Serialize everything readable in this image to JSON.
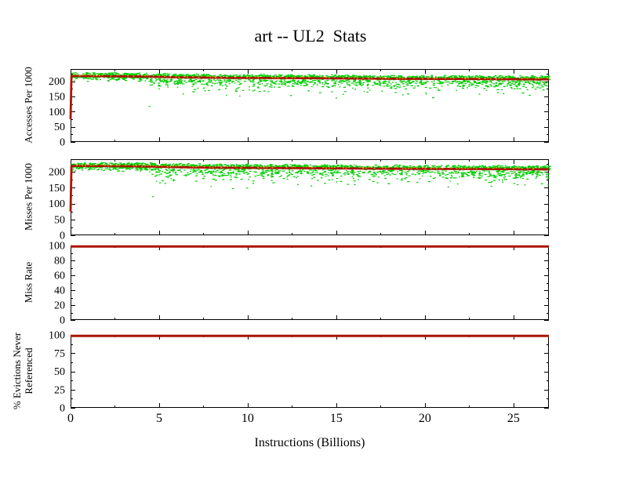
{
  "title": "art -- UL2  Stats",
  "x_axis": {
    "label": "Instructions (Billions)",
    "min": 0,
    "max": 27,
    "major_ticks": [
      0,
      5,
      10,
      15,
      20,
      25
    ],
    "minor_ticks": [
      2.5,
      7.5,
      12.5,
      17.5,
      22.5
    ]
  },
  "colors": {
    "background": "#ffffff",
    "axis": "#000000",
    "scatter_green": "#00cc00",
    "line_red": "#aa1400",
    "marker_yellow": "#c9b800"
  },
  "chart_data": [
    {
      "id": "accesses",
      "type": "scatter",
      "ylabel": "Accesses Per 1000",
      "ylim": [
        0,
        240
      ],
      "yticks": [
        0,
        50,
        100,
        150,
        200
      ],
      "y_minor_step": 25,
      "series": [
        {
          "name": "per-interval-accesses",
          "type": "scatter",
          "color": "#00cc00",
          "seed": 11,
          "count": 2300,
          "band_above_max": 234,
          "spread_start_x": 4.4,
          "spread_depth": 58,
          "stray_points": [
            [
              4.4,
              119
            ]
          ]
        },
        {
          "name": "cumulative-accesses",
          "type": "line",
          "color": "#aa1400",
          "width": 2.8,
          "points": [
            [
              0,
              75
            ],
            [
              0.05,
              217
            ],
            [
              3,
              216
            ],
            [
              4.5,
              215
            ],
            [
              6,
              213
            ],
            [
              9,
              211
            ],
            [
              13,
              210
            ],
            [
              18,
              208
            ],
            [
              23,
              207
            ],
            [
              27,
              206
            ]
          ]
        },
        {
          "name": "secondary-marker",
          "type": "dash-line",
          "color": "#c9b800",
          "seed": 5,
          "step": 0.16,
          "offset_min": 2,
          "offset_max": 6
        }
      ]
    },
    {
      "id": "misses",
      "type": "scatter",
      "ylabel": "Misses Per 1000",
      "ylim": [
        0,
        240
      ],
      "yticks": [
        0,
        50,
        100,
        150,
        200
      ],
      "y_minor_step": 25,
      "series": [
        {
          "name": "per-interval-misses",
          "type": "scatter",
          "color": "#00cc00",
          "seed": 23,
          "count": 2300,
          "band_above_max": 234,
          "spread_start_x": 4.4,
          "spread_depth": 58,
          "stray_points": [
            [
              4.6,
              124
            ]
          ]
        },
        {
          "name": "cumulative-misses",
          "type": "line",
          "color": "#aa1400",
          "width": 2.8,
          "points": [
            [
              0,
              75
            ],
            [
              0.05,
              219
            ],
            [
              3,
              218
            ],
            [
              4.5,
              217
            ],
            [
              6,
              215
            ],
            [
              9,
              213
            ],
            [
              13,
              212
            ],
            [
              18,
              210
            ],
            [
              23,
              209
            ],
            [
              27,
              208
            ]
          ]
        },
        {
          "name": "secondary-marker",
          "type": "dash-line",
          "color": "#c9b800",
          "seed": 9,
          "step": 0.16,
          "offset_min": 2,
          "offset_max": 6
        }
      ]
    },
    {
      "id": "miss-rate",
      "type": "line",
      "ylabel": "Miss Rate",
      "ylim": [
        0,
        100
      ],
      "yticks": [
        0,
        20,
        40,
        60,
        80,
        100
      ],
      "y_minor_step": 10,
      "series": [
        {
          "name": "miss-rate",
          "type": "line",
          "color": "#aa1400",
          "width": 3,
          "points": [
            [
              0,
              100
            ],
            [
              27,
              100
            ]
          ]
        }
      ]
    },
    {
      "id": "evictions",
      "type": "line",
      "ylabel": "% Evictions Never\nReferenced",
      "ylim": [
        0,
        100
      ],
      "yticks": [
        0,
        25,
        50,
        75,
        100
      ],
      "y_minor_step": 12.5,
      "series": [
        {
          "name": "pct-evictions-never-referenced",
          "type": "line",
          "color": "#aa1400",
          "width": 3,
          "points": [
            [
              0,
              100
            ],
            [
              27,
              100
            ]
          ]
        }
      ]
    }
  ]
}
